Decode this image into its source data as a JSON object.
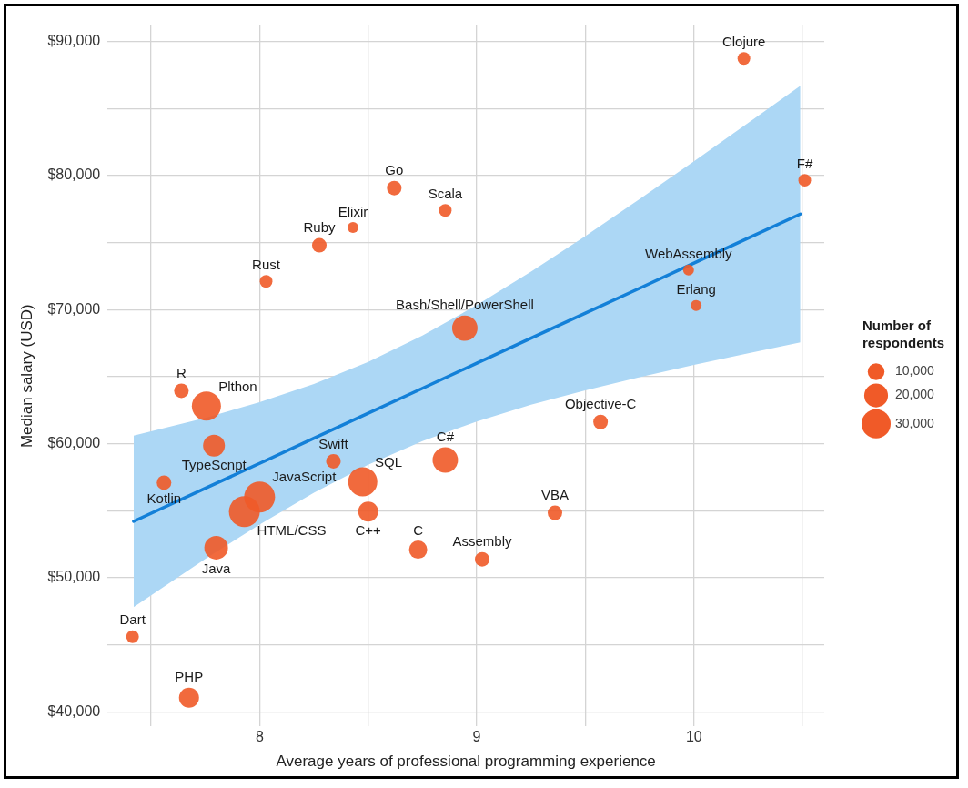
{
  "chart_data": {
    "type": "bubble",
    "xlabel": "Average years of professional programming experience",
    "ylabel": "Median salary (USD)",
    "legend_title": "Number of respondents",
    "size_legend": [
      {
        "value": 10000,
        "label": "10,000"
      },
      {
        "value": 20000,
        "label": "20,000"
      },
      {
        "value": 30000,
        "label": "30,000"
      }
    ],
    "grid": true,
    "xlim": [
      7.3,
      10.6
    ],
    "ylim": [
      38900,
      91200
    ],
    "xticks": [
      {
        "value": 7.5,
        "label": null
      },
      8,
      {
        "value": 8.5,
        "label": null
      },
      9,
      {
        "value": 9.5,
        "label": null
      },
      10,
      {
        "value": 10.5,
        "label": null
      }
    ],
    "yticks": [
      {
        "value": 40000,
        "label": "$40,000"
      },
      {
        "value": 45000,
        "label": null
      },
      {
        "value": 50000,
        "label": "$50,000"
      },
      {
        "value": 55000,
        "label": null
      },
      {
        "value": 60000,
        "label": "$60,000"
      },
      {
        "value": 65000,
        "label": null
      },
      {
        "value": 70000,
        "label": "$70,000"
      },
      {
        "value": 75000,
        "label": null
      },
      {
        "value": 80000,
        "label": "$80,000"
      },
      {
        "value": 85000,
        "label": null
      },
      {
        "value": 90000,
        "label": "$90,000"
      }
    ],
    "series": [
      {
        "type": "bubble",
        "color": "#f05a28",
        "x": [
          10.23,
          10.51,
          8.62,
          8.855,
          8.43,
          8.275,
          8.03,
          9.975,
          10.01,
          8.945,
          7.64,
          7.755,
          7.79,
          9.57,
          8.34,
          7.56,
          8.0,
          8.855,
          8.475,
          7.93,
          8.5,
          8.73,
          9.36,
          7.8,
          9.025,
          7.415,
          7.675
        ],
        "values": [
          88740,
          79650,
          79070,
          77400,
          76130,
          74800,
          72110,
          72960,
          70310,
          68620,
          63950,
          62810,
          59850,
          61620,
          58690,
          57090,
          56020,
          58780,
          57160,
          54930,
          54930,
          52090,
          54840,
          52240,
          51370,
          45600,
          41050
        ],
        "sizes": [
          5700,
          5700,
          7500,
          5700,
          4200,
          7500,
          5700,
          4200,
          4200,
          22900,
          7500,
          30000,
          16900,
          7500,
          7500,
          7500,
          33800,
          22900,
          30000,
          33800,
          14200,
          11700,
          7500,
          19800,
          7500,
          5700,
          14200
        ]
      },
      {
        "type": "line",
        "color": "#1380d8",
        "x": [
          7.42,
          7.75,
          8.0,
          8.25,
          8.5,
          8.75,
          9.0,
          9.25,
          9.5,
          9.75,
          10.0,
          10.25,
          10.49
        ],
        "values": [
          54200,
          56670,
          58530,
          60400,
          62270,
          64130,
          66000,
          67870,
          69740,
          71600,
          73470,
          75340,
          77130
        ],
        "lower": [
          47800,
          51400,
          53970,
          56340,
          58430,
          60200,
          61660,
          62900,
          63980,
          64960,
          65870,
          66750,
          67560
        ],
        "upper": [
          60600,
          61930,
          63100,
          64460,
          66100,
          68070,
          70340,
          72840,
          75490,
          78250,
          81070,
          83930,
          86700
        ]
      }
    ],
    "annotations": [
      {
        "text": "Clojure",
        "x": 10.23,
        "y": 88740
      },
      {
        "text": "F#",
        "x": 10.51,
        "y": 79650
      },
      {
        "text": "Go",
        "x": 8.62,
        "y": 79070
      },
      {
        "text": "Scala",
        "x": 8.855,
        "y": 77400
      },
      {
        "text": "Elixir",
        "x": 8.43,
        "y": 76130
      },
      {
        "text": "Ruby",
        "x": 8.275,
        "y": 74800
      },
      {
        "text": "Rust",
        "x": 8.03,
        "y": 72110
      },
      {
        "text": "WebAssembly",
        "x": 9.975,
        "y": 72960
      },
      {
        "text": "Erlang",
        "x": 10.01,
        "y": 70310
      },
      {
        "text": "Bash/Shell/PowerShell",
        "x": 8.945,
        "y": 68620
      },
      {
        "text": "R",
        "x": 7.64,
        "y": 63950
      },
      {
        "text": "Plthon",
        "x": 7.755,
        "y": 62810
      },
      {
        "text": "TypeScnpt",
        "x": 7.79,
        "y": 59850
      },
      {
        "text": "Objective-C",
        "x": 9.57,
        "y": 61620
      },
      {
        "text": "Swift",
        "x": 8.34,
        "y": 58690
      },
      {
        "text": "Kotlin",
        "x": 7.56,
        "y": 57090
      },
      {
        "text": "JavaScript",
        "x": 8.0,
        "y": 56020
      },
      {
        "text": "C#",
        "x": 8.855,
        "y": 58780
      },
      {
        "text": "SQL",
        "x": 8.475,
        "y": 57160
      },
      {
        "text": "HTML/CSS",
        "x": 7.93,
        "y": 54930
      },
      {
        "text": "C++",
        "x": 8.5,
        "y": 54930
      },
      {
        "text": "C",
        "x": 8.73,
        "y": 52090
      },
      {
        "text": "VBA",
        "x": 9.36,
        "y": 54840
      },
      {
        "text": "Java",
        "x": 7.8,
        "y": 52240
      },
      {
        "text": "Assembly",
        "x": 9.025,
        "y": 51370
      },
      {
        "text": "Dart",
        "x": 7.415,
        "y": 45600
      },
      {
        "text": "PHP",
        "x": 7.675,
        "y": 41050
      }
    ]
  }
}
